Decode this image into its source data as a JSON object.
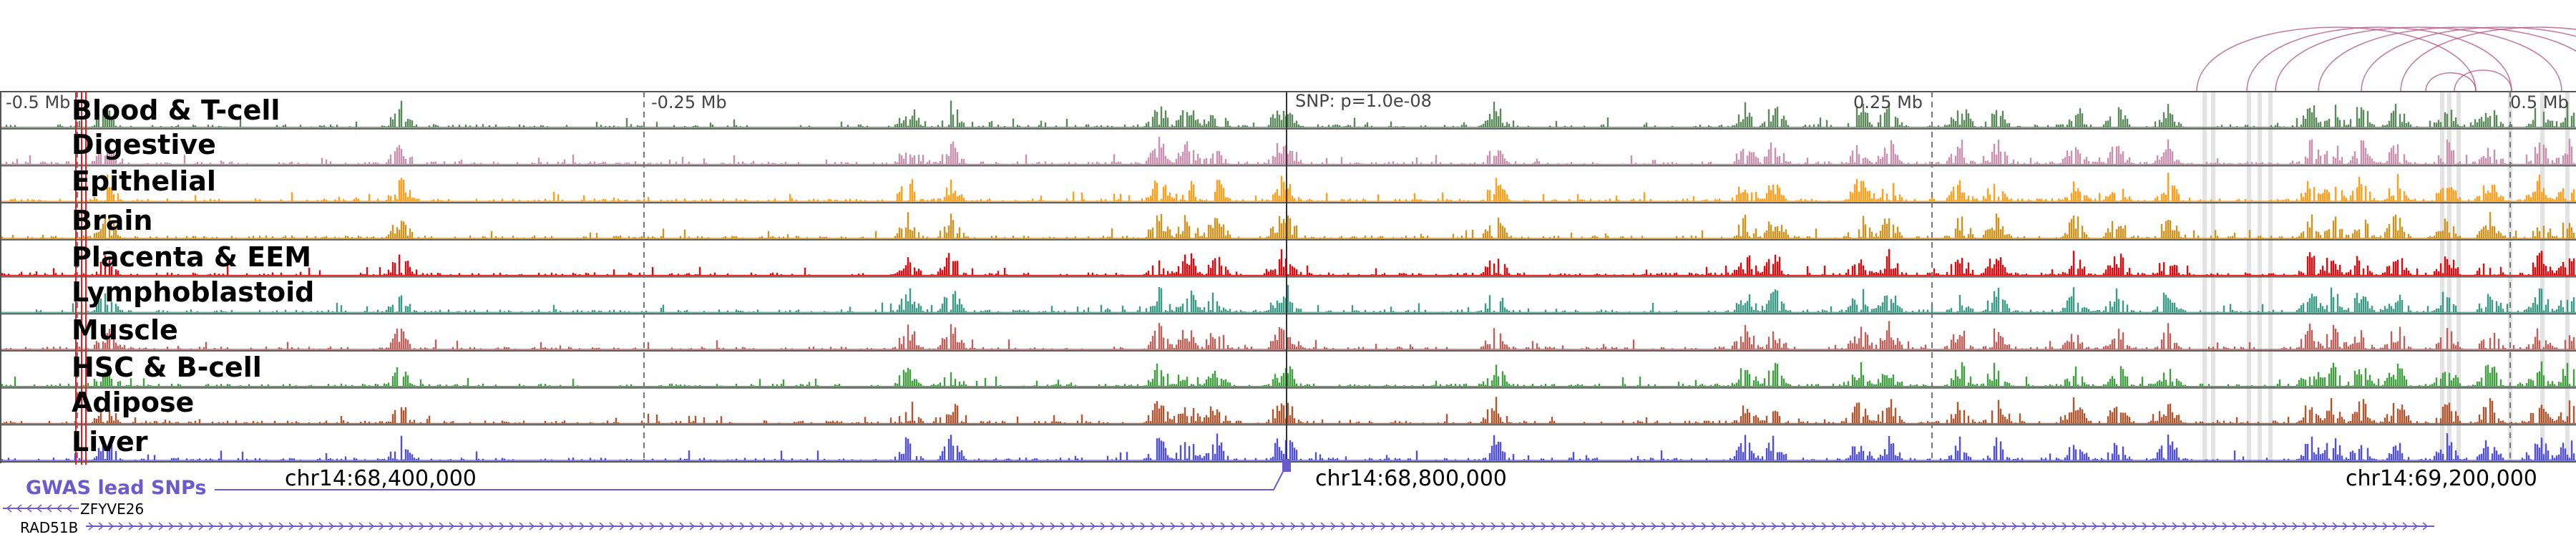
{
  "scale_labels": [
    "-0.5 Mb",
    "-0.25 Mb",
    "SNP: p=1.0e-08",
    "0.25 Mb",
    "0.5 Mb"
  ],
  "tracks": [
    {
      "label": "Blood & T-cell",
      "color": "#5a8a5a"
    },
    {
      "label": "Digestive",
      "color": "#c990b0"
    },
    {
      "label": "Epithelial",
      "color": "#ff9f1a"
    },
    {
      "label": "Brain",
      "color": "#d0941e"
    },
    {
      "label": "Placenta & EEM",
      "color": "#dd0a10"
    },
    {
      "label": "Lymphoblastoid",
      "color": "#3a9c88"
    },
    {
      "label": "Muscle",
      "color": "#c0605a"
    },
    {
      "label": "HSC & B-cell",
      "color": "#40a040"
    },
    {
      "label": "Adipose",
      "color": "#b0552e"
    },
    {
      "label": "Liver",
      "color": "#5050dc"
    }
  ],
  "coordinates": [
    "chr14:68,400,000",
    "chr14:68,800,000",
    "chr14:69,200,000"
  ],
  "gwas_label": "GWAS lead SNPs",
  "genes": [
    "ZFYVE26",
    "RAD51B"
  ],
  "colors": {
    "frame": "#555555",
    "arcs": "#b05080",
    "highlight": "#d0d0d0",
    "snp_marker": "#dd2020",
    "gwas": "#6a5acd",
    "gene_strand": "#6a5acd"
  }
}
